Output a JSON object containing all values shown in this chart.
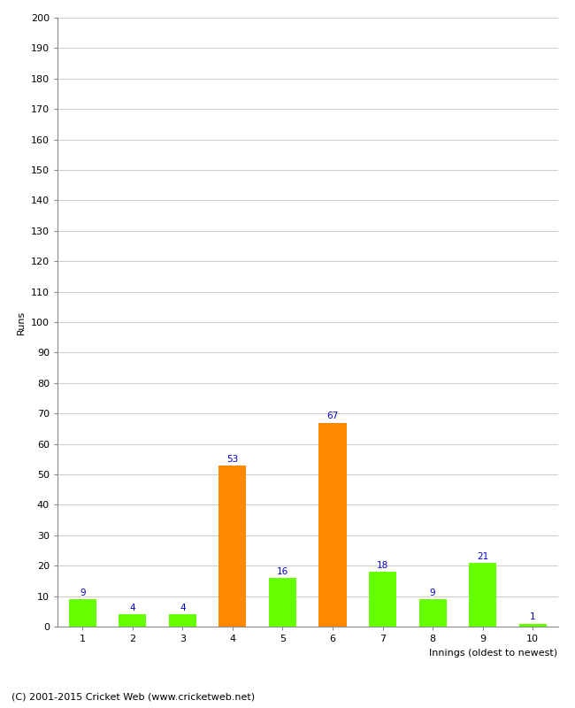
{
  "xlabel": "Innings (oldest to newest)",
  "ylabel": "Runs",
  "categories": [
    1,
    2,
    3,
    4,
    5,
    6,
    7,
    8,
    9,
    10
  ],
  "values": [
    9,
    4,
    4,
    53,
    16,
    67,
    18,
    9,
    21,
    1
  ],
  "bar_colors": [
    "#66ff00",
    "#66ff00",
    "#66ff00",
    "#ff8800",
    "#66ff00",
    "#ff8800",
    "#66ff00",
    "#66ff00",
    "#66ff00",
    "#66ff00"
  ],
  "ylim": [
    0,
    200
  ],
  "ytick_step": 10,
  "label_color": "#0000cc",
  "label_fontsize": 7.5,
  "axis_fontsize": 8,
  "ylabel_fontsize": 8,
  "xlabel_fontsize": 8,
  "footer_text": "(C) 2001-2015 Cricket Web (www.cricketweb.net)",
  "footer_fontsize": 8,
  "background_color": "#ffffff",
  "grid_color": "#cccccc",
  "bar_width": 0.55
}
